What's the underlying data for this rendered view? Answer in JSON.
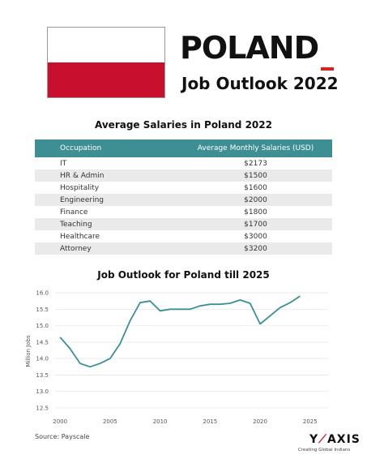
{
  "header": {
    "country": "POLAND",
    "subtitle": "Job Outlook 2022",
    "flag_colors": {
      "top": "#ffffff",
      "bottom": "#c8102e"
    },
    "accent_color": "#e02020"
  },
  "table": {
    "title": "Average Salaries in Poland 2022",
    "header_color": "#3d8f94",
    "columns": [
      "Occupation",
      "Average Monthly Salaries (USD)"
    ],
    "rows": [
      {
        "occupation": "IT",
        "salary": "$2173"
      },
      {
        "occupation": "HR & Admin",
        "salary": "$1500"
      },
      {
        "occupation": "Hospitality",
        "salary": "$1600"
      },
      {
        "occupation": "Engineering",
        "salary": "$2000"
      },
      {
        "occupation": "Finance",
        "salary": "$1800"
      },
      {
        "occupation": "Teaching",
        "salary": "$1700"
      },
      {
        "occupation": "Healthcare",
        "salary": "$3000"
      },
      {
        "occupation": "Attorney",
        "salary": "$3200"
      }
    ]
  },
  "chart_data": {
    "type": "line",
    "title": "Job Outlook for Poland till 2025",
    "xlabel": "",
    "ylabel": "Million Jobs",
    "xlim": [
      1999.5,
      2026.8
    ],
    "ylim": [
      12.4,
      16.05
    ],
    "x_ticks": [
      2000,
      2005,
      2010,
      2015,
      2020,
      2025
    ],
    "y_ticks": [
      12.5,
      13.0,
      13.5,
      14.0,
      14.5,
      15.0,
      15.5,
      16.0
    ],
    "y_tick_labels": [
      "12.5",
      "13.0",
      "13.5",
      "14.0",
      "14.5",
      "15.0",
      "15.5",
      "16.0"
    ],
    "grid": "horizontal",
    "line_color": "#3d8f94",
    "series": [
      {
        "x": [
          2000,
          2001,
          2002,
          2003,
          2004,
          2005,
          2006,
          2007,
          2008,
          2009,
          2010,
          2011,
          2012,
          2013,
          2014,
          2015,
          2016,
          2017,
          2018,
          2019,
          2020,
          2021,
          2022,
          2023,
          2024
        ],
        "values": [
          14.65,
          14.3,
          13.85,
          13.75,
          13.85,
          14.0,
          14.45,
          15.15,
          15.7,
          15.75,
          15.45,
          15.5,
          15.5,
          15.5,
          15.6,
          15.65,
          15.65,
          15.68,
          15.78,
          15.68,
          15.05,
          15.3,
          15.55,
          15.7,
          15.9
        ]
      }
    ]
  },
  "footer": {
    "source": "Source: Payscale",
    "logo_text": "Y AXIS",
    "logo_tagline": "Creating Global Indians"
  }
}
